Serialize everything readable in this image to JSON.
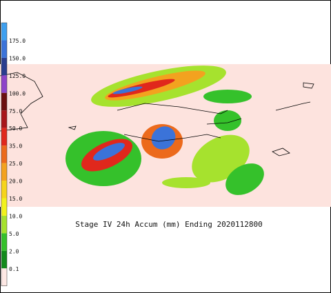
{
  "title": "Stage IV 24h Accum (mm) Ending 2020112800",
  "colorbar": {
    "levels": [
      {
        "label": "175.0",
        "color": "#3b73d9"
      },
      {
        "label": "150.0",
        "color": "#2a3d8f"
      },
      {
        "label": "125.0",
        "color": "#8e44c9"
      },
      {
        "label": "100.0",
        "color": "#6b0f0f"
      },
      {
        "label": "75.0",
        "color": "#a8161a"
      },
      {
        "label": "50.0",
        "color": "#e0281c"
      },
      {
        "label": "35.0",
        "color": "#ec6a1c"
      },
      {
        "label": "25.0",
        "color": "#f3a21f"
      },
      {
        "label": "20.0",
        "color": "#f6d41c"
      },
      {
        "label": "15.0",
        "color": "#f2f21c"
      },
      {
        "label": "10.0",
        "color": "#a6e22e"
      },
      {
        "label": "5.0",
        "color": "#35c12b"
      },
      {
        "label": "2.0",
        "color": "#138a1c"
      },
      {
        "label": "0.1",
        "color": "#fde8e4"
      }
    ],
    "top_color": "#3ea0f0"
  }
}
